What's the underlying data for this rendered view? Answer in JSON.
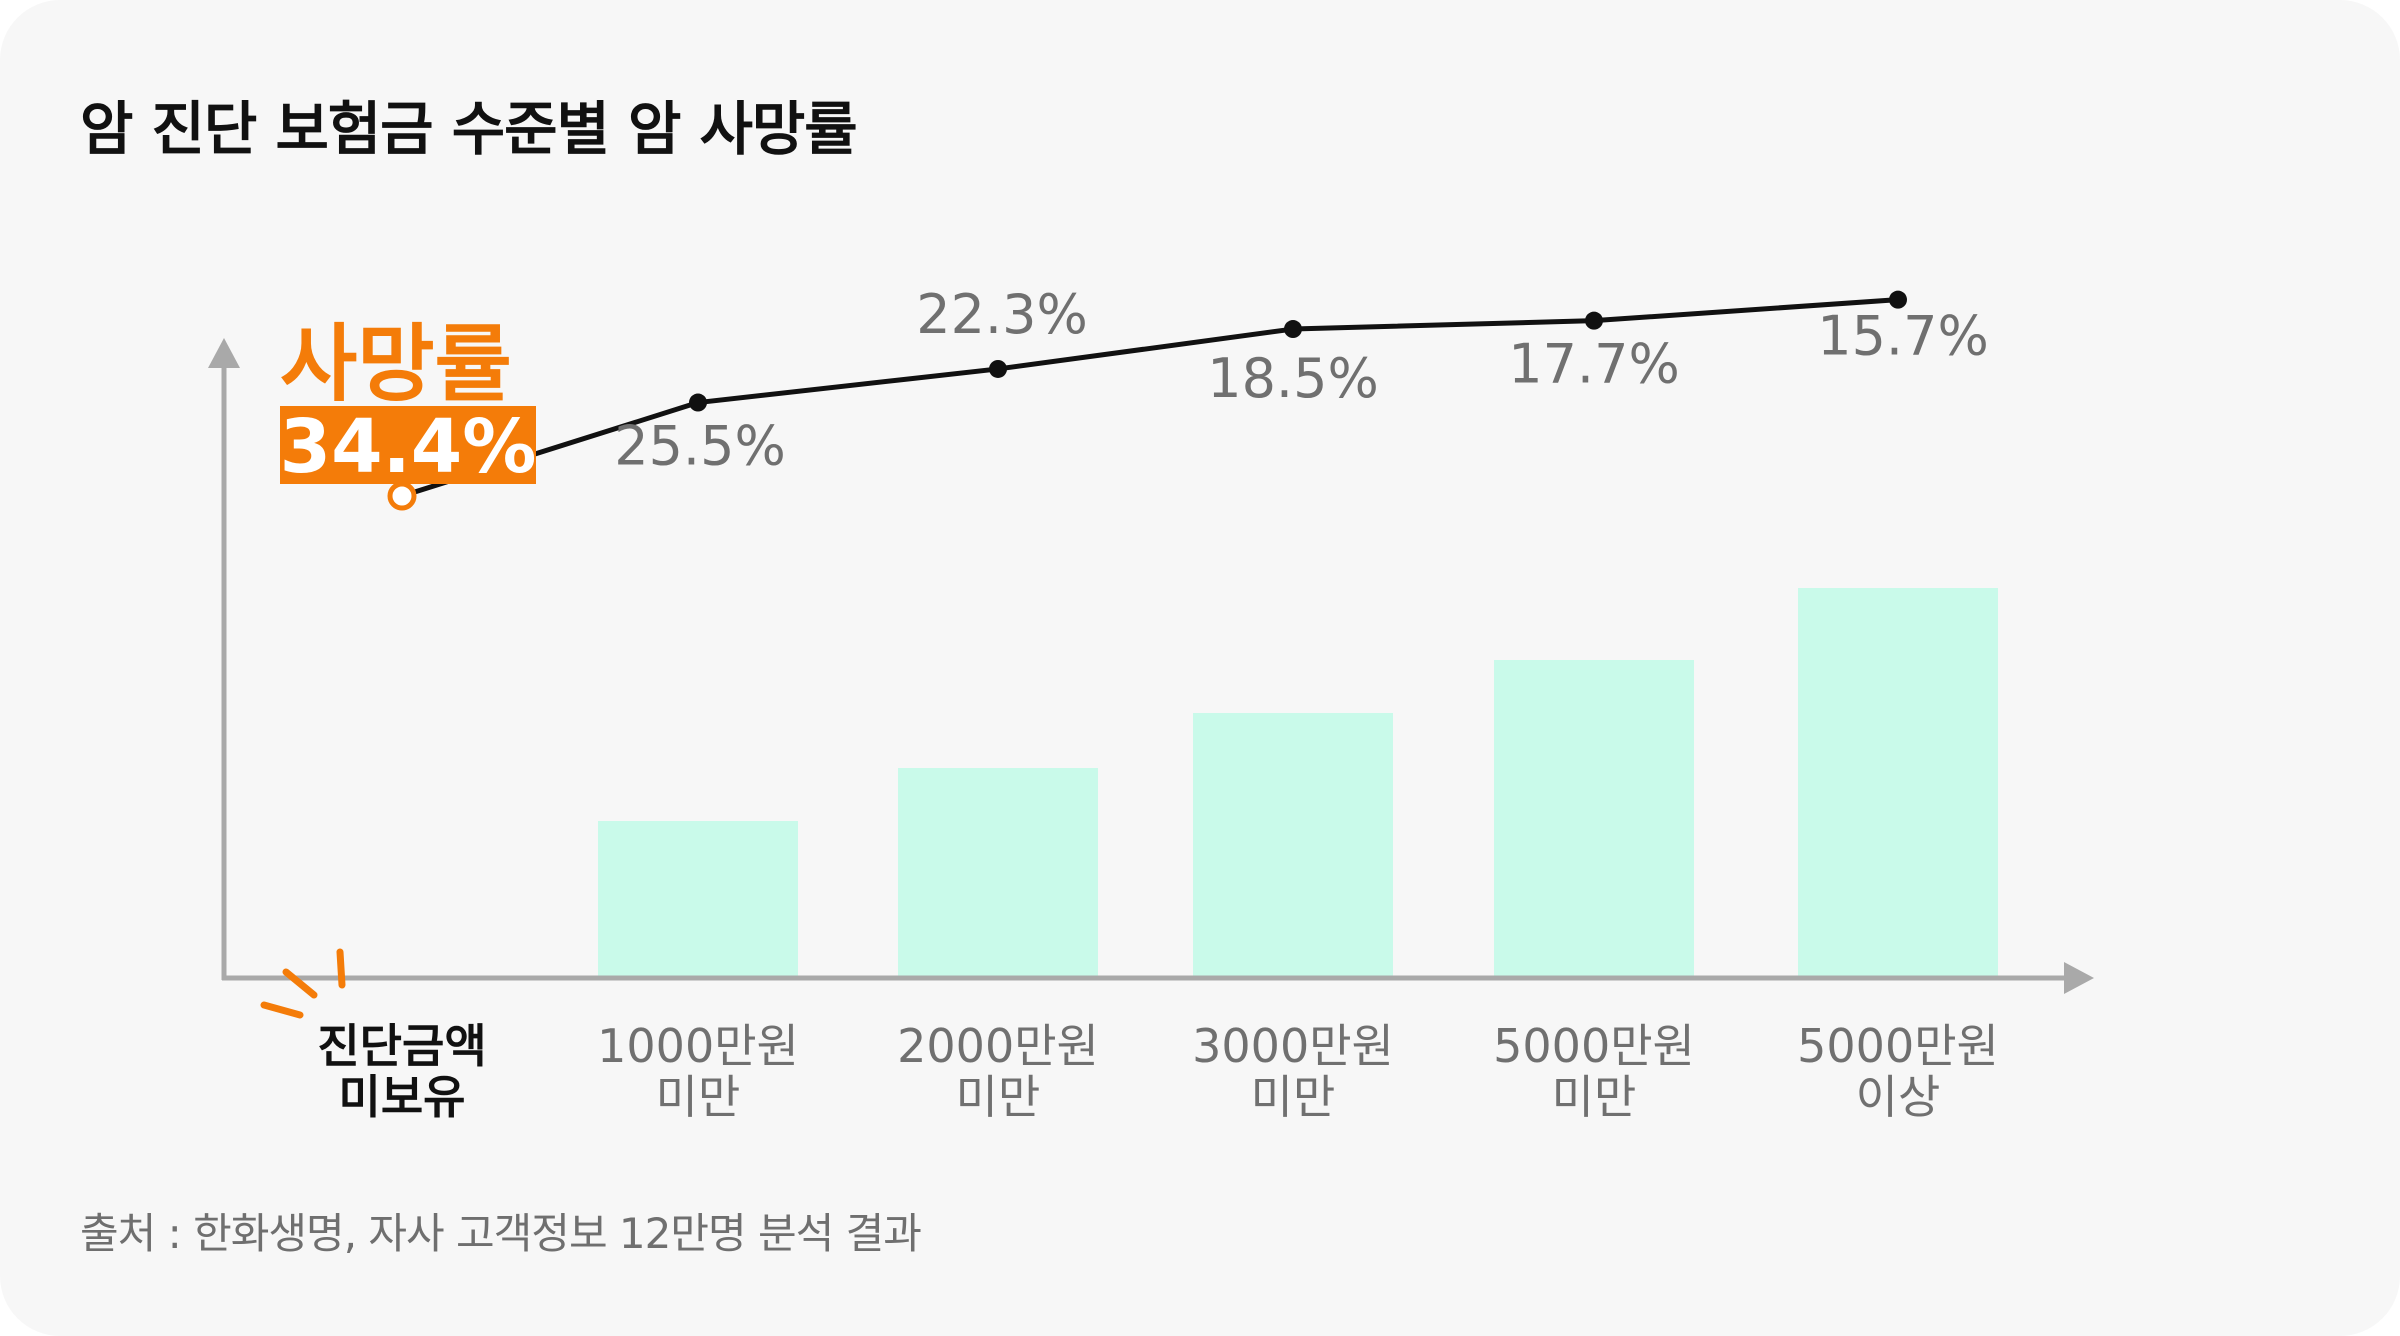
{
  "title": "암 진단 보험금 수준별 암 사망률",
  "source": "출처 : 한화생명, 자사 고객정보 12만명 분석 결과",
  "colors": {
    "background": "#f7f7f7",
    "bar": "#c9faea",
    "line": "#111111",
    "axis": "#a9a9a9",
    "highlight": "#f47c09",
    "label": "#707070"
  },
  "chart_data": {
    "type": "line",
    "title": "암 진단 보험금 수준별 암 사망률",
    "xlabel": "",
    "ylabel": "",
    "grid": false,
    "categories": [
      [
        "진단금액",
        "미보유"
      ],
      [
        "1000만원",
        "미만"
      ],
      [
        "2000만원",
        "미만"
      ],
      [
        "3000만원",
        "미만"
      ],
      [
        "5000만원",
        "미만"
      ],
      [
        "5000만원",
        "이상"
      ]
    ],
    "values": [
      34.4,
      25.5,
      22.3,
      18.5,
      17.7,
      15.7
    ],
    "value_labels": [
      "34.4%",
      "25.5%",
      "22.3%",
      "18.5%",
      "17.7%",
      "15.7%"
    ],
    "highlight": {
      "index": 0,
      "heading": "사망률",
      "value_label": "34.4%"
    },
    "decorative_bars": {
      "categories_with_bars": [
        1,
        2,
        3,
        4,
        5
      ],
      "relative_level": [
        1,
        2,
        3,
        4,
        5
      ]
    }
  }
}
